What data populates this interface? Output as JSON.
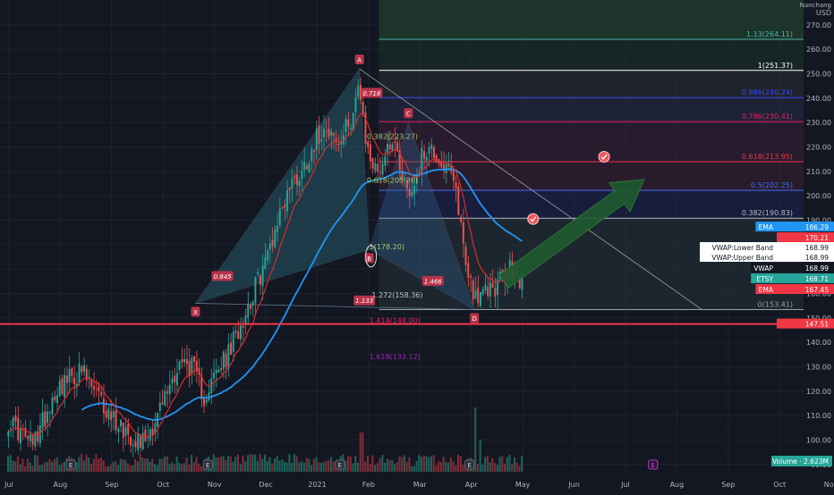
{
  "chart_data": {
    "type": "candlestick",
    "instrument": "ETSY",
    "currency": "USD",
    "currency_header": "USD",
    "scale_label": "Nanchang",
    "y_ticks": [
      90,
      100,
      110,
      120,
      130,
      140,
      150,
      160,
      170,
      180,
      190,
      200,
      210,
      220,
      230,
      240,
      250,
      260,
      270
    ],
    "ylim": [
      87,
      278
    ],
    "x_tick_labels": [
      "Jul",
      "Aug",
      "Sep",
      "Oct",
      "Nov",
      "Dec",
      "2021",
      "Feb",
      "Mar",
      "Apr",
      "May",
      "Jun",
      "Jul",
      "Aug",
      "Sep",
      "Oct",
      "Nov"
    ],
    "bars_per_month": 21,
    "close_anchors": [
      [
        0,
        108
      ],
      [
        10,
        98
      ],
      [
        20,
        122
      ],
      [
        30,
        128
      ],
      [
        40,
        112
      ],
      [
        50,
        102
      ],
      [
        55,
        100
      ],
      [
        60,
        108
      ],
      [
        65,
        120
      ],
      [
        70,
        132
      ],
      [
        75,
        130
      ],
      [
        80,
        118
      ],
      [
        85,
        127
      ],
      [
        90,
        135
      ],
      [
        95,
        148
      ],
      [
        100,
        160
      ],
      [
        105,
        173
      ],
      [
        110,
        190
      ],
      [
        115,
        204
      ],
      [
        120,
        210
      ],
      [
        125,
        222
      ],
      [
        130,
        230
      ],
      [
        135,
        220
      ],
      [
        140,
        232
      ],
      [
        143,
        245
      ],
      [
        146,
        222
      ],
      [
        150,
        210
      ],
      [
        153,
        214
      ],
      [
        157,
        225
      ],
      [
        160,
        213
      ],
      [
        164,
        200
      ],
      [
        168,
        213
      ],
      [
        171,
        220
      ],
      [
        174,
        218
      ],
      [
        178,
        212
      ],
      [
        181,
        208
      ],
      [
        184,
        196
      ],
      [
        187,
        172
      ],
      [
        190,
        162
      ],
      [
        193,
        157
      ],
      [
        196,
        162
      ],
      [
        199,
        163
      ],
      [
        202,
        166
      ],
      [
        205,
        170
      ],
      [
        208,
        165
      ],
      [
        210,
        168
      ]
    ],
    "volume_label": "Volume",
    "volume_value": "2.623M",
    "indicators": [
      {
        "name": "EMA",
        "value": "186.29",
        "color": "#2196f3"
      },
      {
        "name": "",
        "value": "170.21",
        "color": "#f23645"
      },
      {
        "name": "VWAP:Lower Band",
        "value": "168.99",
        "color": "#ffffff"
      },
      {
        "name": "VWAP:Upper Band",
        "value": "168.99",
        "color": "#ffffff"
      },
      {
        "name": "VWAP",
        "value": "168.99",
        "color": "#131722"
      },
      {
        "name": "ETSY",
        "value": "168.71",
        "color": "#26a69a"
      },
      {
        "name": "EMA",
        "value": "167.45",
        "color": "#f23645"
      }
    ],
    "support_line": {
      "value": 147.51,
      "label": "147.51",
      "color": "#f23645"
    },
    "fib_retracement": [
      {
        "label": "1.13(264.11)",
        "value": 264.11,
        "color": "#4db6ac"
      },
      {
        "label": "1(251.37)",
        "value": 251.37,
        "color": "#ffffff"
      },
      {
        "label": "0.886(240.24)",
        "value": 240.24,
        "color": "#3949ff"
      },
      {
        "label": "0.786(230.41)",
        "value": 230.41,
        "color": "#e91e63"
      },
      {
        "label": "0.618(213.95)",
        "value": 213.95,
        "color": "#f23645"
      },
      {
        "label": "0.5(202.25)",
        "value": 202.25,
        "color": "#4a6cf7"
      },
      {
        "label": "0.382(190.83)",
        "value": 190.83,
        "color": "#b0bec5"
      },
      {
        "label": "0(153.41)",
        "value": 153.41,
        "color": "#9aa0a6"
      }
    ],
    "harmonic_points": [
      {
        "label": "X",
        "i": 77,
        "value": 156
      },
      {
        "label": "A",
        "i": 144,
        "value": 252
      },
      {
        "label": "B",
        "i": 148,
        "value": 178
      },
      {
        "label": "C",
        "i": 164,
        "value": 230
      },
      {
        "label": "D",
        "i": 191,
        "value": 153.4
      }
    ],
    "harmonic_ratios": [
      {
        "label": "0.845",
        "i": 88,
        "value": 167
      },
      {
        "label": "0.718",
        "i": 149,
        "value": 242
      },
      {
        "label": "1.466",
        "i": 174,
        "value": 165
      },
      {
        "label": "1.133",
        "i": 146,
        "value": 157
      }
    ],
    "pattern_levels": [
      {
        "label": "0.382(223.27)",
        "i": 147,
        "value": 223.3,
        "color": "#9ccc65"
      },
      {
        "label": "0.618(205.26)",
        "i": 147,
        "value": 205.3,
        "color": "#9ccc65"
      },
      {
        "label": "1(178.20)",
        "i": 148,
        "value": 178.2,
        "color": "#9ccc65"
      },
      {
        "label": "1.272(158.36)",
        "i": 149,
        "value": 158.4,
        "color": "#c0c0c0"
      },
      {
        "label": "1.414(148.00)",
        "i": 148,
        "value": 148.0,
        "color": "#e91e63"
      },
      {
        "label": "1.618(133.12)",
        "i": 148,
        "value": 133.1,
        "color": "#9c27b0"
      }
    ],
    "targets": [
      {
        "i": 215,
        "value": 190.5
      },
      {
        "i": 244,
        "value": 216
      }
    ],
    "events_label": "E"
  }
}
